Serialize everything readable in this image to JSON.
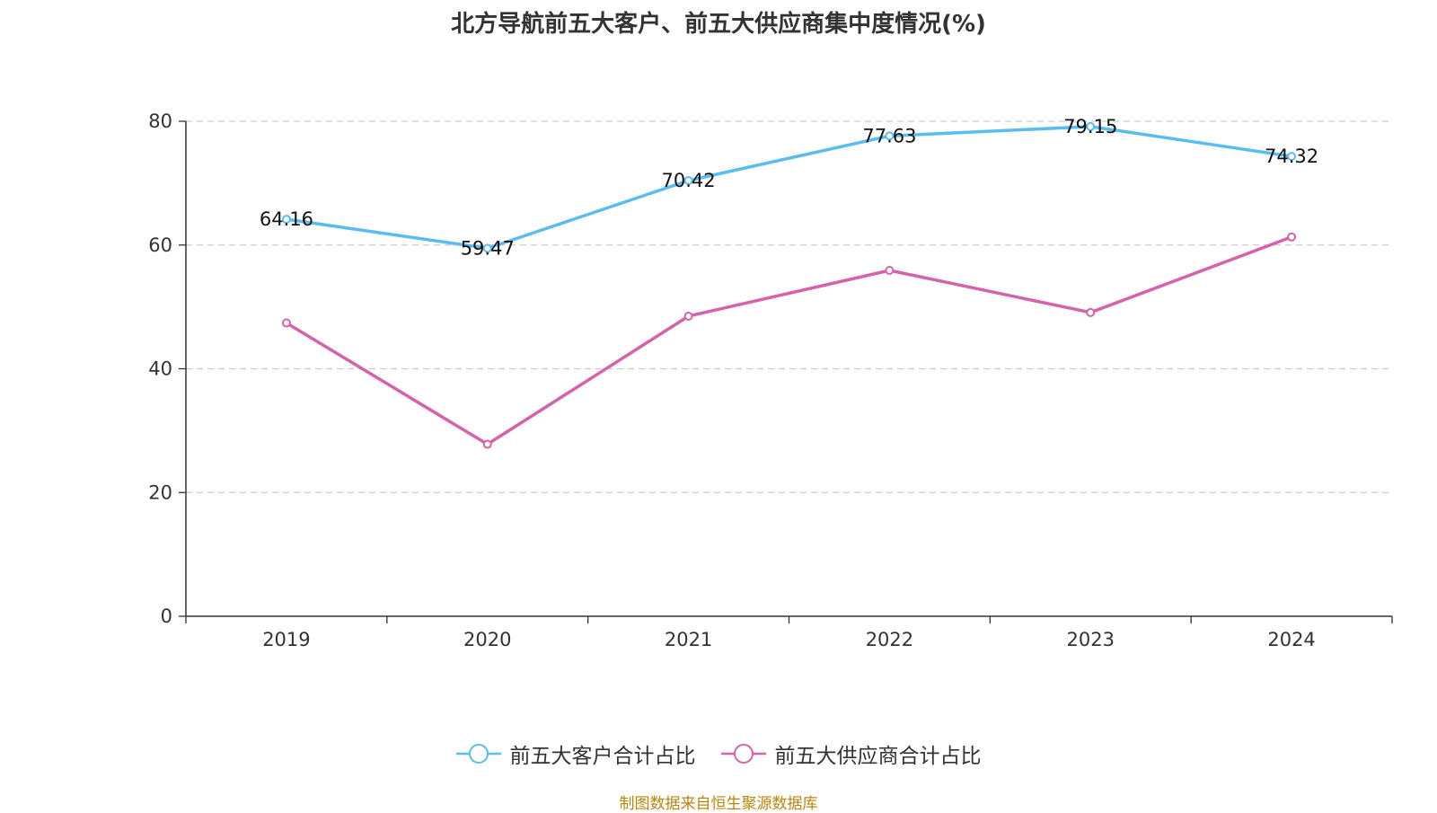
{
  "chart_data": {
    "type": "line",
    "title": "北方导航前五大客户、前五大供应商集中度情况(%)",
    "categories": [
      "2019",
      "2020",
      "2021",
      "2022",
      "2023",
      "2024"
    ],
    "ylim": [
      0,
      80
    ],
    "yticks": [
      0,
      20,
      40,
      60,
      80
    ],
    "grid": true,
    "legend_position": "bottom",
    "series": [
      {
        "name": "前五大客户合计占比",
        "color": "#5bbcef",
        "values": [
          64.16,
          59.47,
          70.42,
          77.63,
          79.15,
          74.32
        ],
        "labels": [
          "64.16",
          "59.47",
          "70.42",
          "77.63",
          "79.15",
          "74.32"
        ]
      },
      {
        "name": "前五大供应商合计占比",
        "color": "#d563a9",
        "values": [
          47.4,
          27.8,
          48.5,
          55.9,
          49.1,
          61.3
        ]
      }
    ]
  },
  "source_note": "制图数据来自恒生聚源数据库"
}
